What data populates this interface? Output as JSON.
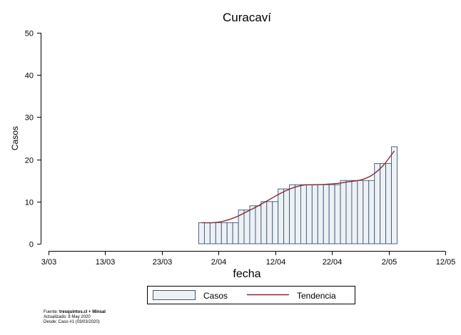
{
  "chart_data": {
    "type": "bar",
    "title": "Curacaví",
    "xlabel": "fecha",
    "ylabel": "Casos",
    "ylim": [
      0,
      50
    ],
    "yticks": [
      0,
      10,
      20,
      30,
      40,
      50
    ],
    "x_tick_labels": [
      "3/03",
      "13/03",
      "23/03",
      "2/04",
      "12/04",
      "22/04",
      "2/05",
      "12/05"
    ],
    "x_tick_dates": [
      "2020-03-03",
      "2020-03-13",
      "2020-03-23",
      "2020-04-02",
      "2020-04-12",
      "2020-04-22",
      "2020-05-02",
      "2020-05-12"
    ],
    "xlim": [
      "2020-03-03",
      "2020-05-12"
    ],
    "grid": false,
    "legend_position": "bottom",
    "series": [
      {
        "name": "Casos",
        "type": "bar",
        "fill": "#eef1f4",
        "stroke": "#3c5777",
        "x": [
          "2020-03-30",
          "2020-03-31",
          "2020-04-01",
          "2020-04-02",
          "2020-04-03",
          "2020-04-04",
          "2020-04-05",
          "2020-04-06",
          "2020-04-07",
          "2020-04-08",
          "2020-04-09",
          "2020-04-10",
          "2020-04-11",
          "2020-04-12",
          "2020-04-13",
          "2020-04-14",
          "2020-04-15",
          "2020-04-16",
          "2020-04-17",
          "2020-04-18",
          "2020-04-19",
          "2020-04-20",
          "2020-04-21",
          "2020-04-22",
          "2020-04-23",
          "2020-04-24",
          "2020-04-25",
          "2020-04-26",
          "2020-04-27",
          "2020-04-28",
          "2020-04-29",
          "2020-04-30",
          "2020-05-01",
          "2020-05-02",
          "2020-05-03"
        ],
        "values": [
          5,
          5,
          5,
          5,
          5,
          5,
          5,
          8,
          8,
          9,
          9,
          10,
          10,
          10,
          13,
          13,
          14,
          14,
          14,
          14,
          14,
          14,
          14,
          14,
          14,
          15,
          15,
          15,
          15,
          15,
          15,
          19,
          19,
          19,
          23
        ]
      },
      {
        "name": "Tendencia",
        "type": "line",
        "color": "#8b2a36",
        "x": [
          "2020-03-30",
          "2020-04-01",
          "2020-04-03",
          "2020-04-05",
          "2020-04-07",
          "2020-04-09",
          "2020-04-11",
          "2020-04-13",
          "2020-04-15",
          "2020-04-17",
          "2020-04-19",
          "2020-04-21",
          "2020-04-23",
          "2020-04-25",
          "2020-04-27",
          "2020-04-29",
          "2020-05-01",
          "2020-05-03"
        ],
        "values": [
          5,
          5,
          5.4,
          6.3,
          7.6,
          9,
          10.5,
          12,
          13.2,
          13.9,
          14,
          14.1,
          14.3,
          14.7,
          15.1,
          16.2,
          18.5,
          22
        ]
      }
    ],
    "legend": [
      "Casos",
      "Tendencia"
    ]
  },
  "footer": {
    "source_prefix": "Fuente: ",
    "source_bold": "tresquintos.cl + Minsal",
    "updated": "Actualizado: 8 May 2020",
    "since": "Desde: Caso #1  (03/03/2020)"
  }
}
